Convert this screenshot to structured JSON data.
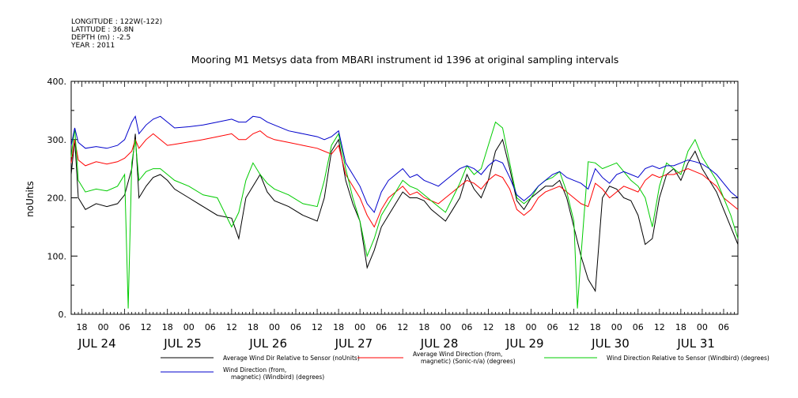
{
  "header": {
    "longitude": "LONGITUDE : 122W(-122)",
    "latitude": "LATITUDE : 36.8N",
    "depth": "DEPTH (m) : -2.5",
    "year": "YEAR : 2011"
  },
  "chart_data": {
    "type": "line",
    "title": "Mooring M1 Metsys data from MBARI instrument id 1396 at original sampling intervals",
    "ylabel": "noUnits",
    "xlabel": "",
    "ylim": [
      0,
      400
    ],
    "yticks": [
      "0.",
      "100.",
      "200.",
      "300.",
      "400."
    ],
    "xrange_hours": [
      -9,
      178
    ],
    "x_unit": "hours from 00:00 JUL 24 2011",
    "hour_ticks": [
      {
        "hour": -6,
        "label": "18"
      },
      {
        "hour": 0,
        "label": "00"
      },
      {
        "hour": 6,
        "label": "06"
      },
      {
        "hour": 12,
        "label": "12"
      },
      {
        "hour": 18,
        "label": "18"
      },
      {
        "hour": 24,
        "label": "00"
      },
      {
        "hour": 30,
        "label": "06"
      },
      {
        "hour": 36,
        "label": "12"
      },
      {
        "hour": 42,
        "label": "18"
      },
      {
        "hour": 48,
        "label": "00"
      },
      {
        "hour": 54,
        "label": "06"
      },
      {
        "hour": 60,
        "label": "12"
      },
      {
        "hour": 66,
        "label": "18"
      },
      {
        "hour": 72,
        "label": "00"
      },
      {
        "hour": 78,
        "label": "06"
      },
      {
        "hour": 84,
        "label": "12"
      },
      {
        "hour": 90,
        "label": "18"
      },
      {
        "hour": 96,
        "label": "00"
      },
      {
        "hour": 102,
        "label": "06"
      },
      {
        "hour": 108,
        "label": "12"
      },
      {
        "hour": 114,
        "label": "18"
      },
      {
        "hour": 120,
        "label": "00"
      },
      {
        "hour": 126,
        "label": "06"
      },
      {
        "hour": 132,
        "label": "12"
      },
      {
        "hour": 138,
        "label": "18"
      },
      {
        "hour": 144,
        "label": "00"
      },
      {
        "hour": 150,
        "label": "06"
      },
      {
        "hour": 156,
        "label": "12"
      },
      {
        "hour": 162,
        "label": "18"
      },
      {
        "hour": 168,
        "label": "00"
      },
      {
        "hour": 174,
        "label": "06"
      }
    ],
    "hour_ticks_extra": [
      {
        "hour": 180,
        "label": "12"
      }
    ],
    "date_labels": [
      {
        "hour": -7,
        "label": "JUL 24"
      },
      {
        "hour": 17,
        "label": "JUL 25"
      },
      {
        "hour": 41,
        "label": "JUL 26"
      },
      {
        "hour": 65,
        "label": "JUL 27"
      },
      {
        "hour": 89,
        "label": "JUL 28"
      },
      {
        "hour": 113,
        "label": "JUL 29"
      },
      {
        "hour": 137,
        "label": "JUL 30"
      },
      {
        "hour": 161,
        "label": "JUL 31"
      }
    ],
    "series": [
      {
        "name": "Average Wind Dir Relative to Sensor (noUnits)",
        "color": "#000000",
        "x": [
          -9,
          -8,
          -7,
          -5,
          -2,
          1,
          4,
          6,
          8,
          9,
          10,
          12,
          14,
          16,
          18,
          20,
          24,
          28,
          32,
          36,
          38,
          40,
          42,
          44,
          46,
          48,
          52,
          56,
          60,
          62,
          64,
          66,
          68,
          70,
          72,
          74,
          76,
          78,
          80,
          82,
          84,
          86,
          88,
          90,
          92,
          94,
          96,
          98,
          100,
          102,
          104,
          106,
          108,
          110,
          112,
          114,
          116,
          118,
          120,
          122,
          124,
          126,
          128,
          130,
          132,
          134,
          136,
          138,
          140,
          142,
          144,
          146,
          148,
          150,
          152,
          154,
          156,
          158,
          160,
          162,
          164,
          166,
          168,
          170,
          172,
          174,
          176,
          178
        ],
        "y": [
          240,
          300,
          200,
          180,
          190,
          185,
          190,
          205,
          250,
          310,
          200,
          220,
          235,
          240,
          230,
          215,
          200,
          185,
          170,
          165,
          130,
          200,
          220,
          240,
          210,
          195,
          185,
          170,
          160,
          200,
          280,
          300,
          230,
          190,
          160,
          80,
          110,
          150,
          170,
          190,
          210,
          200,
          200,
          195,
          180,
          170,
          160,
          180,
          200,
          240,
          215,
          200,
          230,
          280,
          300,
          250,
          195,
          180,
          200,
          210,
          220,
          220,
          230,
          200,
          150,
          100,
          60,
          40,
          200,
          220,
          215,
          200,
          195,
          170,
          120,
          130,
          200,
          240,
          250,
          230,
          260,
          280,
          250,
          230,
          210,
          180,
          150,
          120
        ]
      },
      {
        "name": "Average Wind Direction (from, magnetic) (Sonic-n/a) (degrees)",
        "color": "#ff0000",
        "x": [
          -9,
          -8,
          -7,
          -5,
          -2,
          1,
          4,
          6,
          8,
          9,
          10,
          12,
          14,
          16,
          18,
          20,
          24,
          28,
          32,
          36,
          38,
          40,
          42,
          44,
          46,
          48,
          52,
          56,
          60,
          62,
          64,
          66,
          68,
          70,
          72,
          74,
          76,
          78,
          80,
          82,
          84,
          86,
          88,
          90,
          92,
          94,
          96,
          98,
          100,
          102,
          104,
          106,
          108,
          110,
          112,
          114,
          116,
          118,
          120,
          122,
          124,
          126,
          128,
          130,
          132,
          134,
          136,
          138,
          140,
          142,
          144,
          146,
          148,
          150,
          152,
          154,
          156,
          158,
          160,
          162,
          164,
          166,
          168,
          170,
          172,
          174,
          176,
          178
        ],
        "y": [
          260,
          300,
          265,
          255,
          262,
          258,
          262,
          268,
          280,
          300,
          285,
          300,
          310,
          300,
          290,
          292,
          296,
          300,
          305,
          310,
          300,
          300,
          310,
          315,
          305,
          300,
          295,
          290,
          285,
          280,
          275,
          290,
          240,
          220,
          200,
          170,
          150,
          180,
          200,
          210,
          220,
          205,
          210,
          200,
          195,
          190,
          200,
          210,
          220,
          230,
          225,
          215,
          230,
          240,
          235,
          215,
          180,
          170,
          180,
          200,
          210,
          215,
          220,
          210,
          200,
          190,
          185,
          225,
          215,
          200,
          210,
          220,
          215,
          210,
          230,
          240,
          235,
          240,
          240,
          245,
          250,
          245,
          240,
          230,
          220,
          200,
          190,
          180
        ]
      },
      {
        "name": "Wind Direction Relative to Sensor (Windbird) (degrees)",
        "color": "#00cc00",
        "x": [
          -9,
          -8,
          -7,
          -5,
          -2,
          1,
          4,
          6,
          7,
          8,
          9,
          10,
          12,
          14,
          16,
          18,
          20,
          24,
          28,
          32,
          36,
          38,
          40,
          42,
          44,
          46,
          48,
          52,
          56,
          60,
          62,
          64,
          66,
          68,
          70,
          72,
          74,
          76,
          78,
          80,
          82,
          84,
          86,
          88,
          90,
          92,
          94,
          96,
          98,
          100,
          102,
          104,
          106,
          108,
          110,
          112,
          114,
          116,
          118,
          120,
          122,
          124,
          126,
          128,
          130,
          132,
          133,
          134,
          136,
          138,
          140,
          142,
          144,
          146,
          148,
          150,
          152,
          154,
          156,
          158,
          160,
          162,
          164,
          166,
          168,
          170,
          172,
          174,
          176,
          178
        ],
        "y": [
          270,
          320,
          230,
          210,
          215,
          212,
          220,
          240,
          10,
          260,
          300,
          230,
          245,
          250,
          250,
          240,
          230,
          220,
          205,
          200,
          150,
          175,
          230,
          260,
          240,
          225,
          215,
          205,
          190,
          185,
          230,
          290,
          310,
          250,
          200,
          160,
          100,
          130,
          170,
          190,
          210,
          230,
          220,
          215,
          205,
          195,
          185,
          175,
          200,
          225,
          255,
          240,
          250,
          290,
          330,
          320,
          260,
          200,
          190,
          200,
          220,
          230,
          235,
          245,
          210,
          160,
          10,
          100,
          262,
          260,
          250,
          255,
          260,
          245,
          230,
          220,
          200,
          150,
          220,
          260,
          250,
          240,
          280,
          300,
          270,
          250,
          230,
          200,
          170,
          130
        ]
      },
      {
        "name": "Wind Direction (from, magnetic) (Windbird) (degrees)",
        "color": "#0000cc",
        "x": [
          -9,
          -8,
          -7,
          -5,
          -2,
          1,
          4,
          6,
          8,
          9,
          10,
          12,
          14,
          16,
          18,
          20,
          24,
          28,
          32,
          36,
          38,
          40,
          42,
          44,
          46,
          48,
          52,
          56,
          60,
          62,
          64,
          66,
          68,
          70,
          72,
          74,
          76,
          78,
          80,
          82,
          84,
          86,
          88,
          90,
          92,
          94,
          96,
          98,
          100,
          102,
          104,
          106,
          108,
          110,
          112,
          114,
          116,
          118,
          120,
          122,
          124,
          126,
          128,
          130,
          132,
          134,
          136,
          138,
          140,
          142,
          144,
          146,
          148,
          150,
          152,
          154,
          156,
          158,
          160,
          162,
          164,
          166,
          168,
          170,
          172,
          174,
          176,
          178
        ],
        "y": [
          290,
          320,
          295,
          285,
          288,
          285,
          290,
          300,
          330,
          340,
          310,
          325,
          335,
          340,
          330,
          320,
          322,
          325,
          330,
          335,
          330,
          330,
          340,
          338,
          330,
          325,
          315,
          310,
          305,
          300,
          305,
          315,
          260,
          240,
          220,
          190,
          175,
          210,
          230,
          240,
          250,
          235,
          240,
          230,
          225,
          220,
          230,
          240,
          250,
          255,
          250,
          240,
          255,
          265,
          260,
          235,
          205,
          195,
          205,
          220,
          230,
          240,
          245,
          235,
          230,
          225,
          215,
          250,
          235,
          225,
          240,
          245,
          240,
          235,
          250,
          255,
          250,
          255,
          255,
          260,
          265,
          262,
          258,
          250,
          240,
          225,
          210,
          200
        ]
      }
    ],
    "legend": [
      {
        "key": "black",
        "line1": "Average Wind Dir Relative to Sensor (noUnits)",
        "line2": ""
      },
      {
        "key": "red",
        "line1": "Average Wind Direction (from,",
        "line2": "magnetic) (Sonic-n/a) (degrees)"
      },
      {
        "key": "green",
        "line1": "Wind Direction Relative to Sensor (Windbird) (degrees)",
        "line2": ""
      },
      {
        "key": "blue",
        "line1": "Wind Direction (from,",
        "line2": "magnetic) (Windbird) (degrees)"
      }
    ]
  }
}
